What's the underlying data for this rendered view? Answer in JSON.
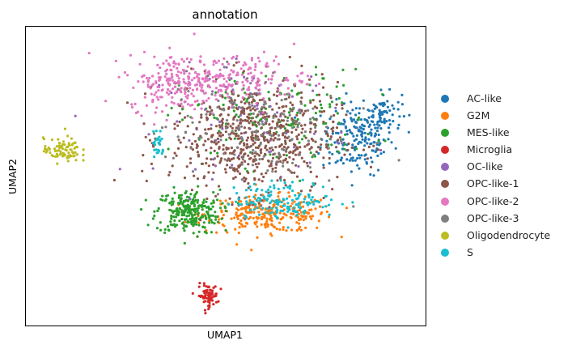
{
  "chart_data": {
    "type": "scatter",
    "title": "annotation",
    "xlabel": "UMAP1",
    "ylabel": "UMAP2",
    "grid": false,
    "legend_position": "right-outside",
    "xlim": [
      -8,
      12
    ],
    "ylim": [
      -7,
      8
    ],
    "series": [
      {
        "name": "AC-like",
        "color": "#1f77b4",
        "clusters": [
          {
            "cx": 8.6,
            "cy": 2.4,
            "sx": 0.9,
            "sy": 0.9,
            "n": 180
          },
          {
            "cx": 9.8,
            "cy": 3.7,
            "sx": 0.5,
            "sy": 0.5,
            "n": 70
          }
        ]
      },
      {
        "name": "G2M",
        "color": "#ff7f0e",
        "clusters": [
          {
            "cx": 4.2,
            "cy": -1.4,
            "sx": 1.6,
            "sy": 0.45,
            "n": 280
          }
        ]
      },
      {
        "name": "MES-like",
        "color": "#2ca02c",
        "clusters": [
          {
            "cx": 0.1,
            "cy": -1.3,
            "sx": 0.8,
            "sy": 0.55,
            "n": 260
          },
          {
            "cx": 4.5,
            "cy": 3.4,
            "sx": 2.4,
            "sy": 1.2,
            "n": 170
          }
        ]
      },
      {
        "name": "Microglia",
        "color": "#d62728",
        "clusters": [
          {
            "cx": 1.1,
            "cy": -5.5,
            "sx": 0.25,
            "sy": 0.28,
            "n": 75
          }
        ]
      },
      {
        "name": "OC-like",
        "color": "#9467bd",
        "clusters": [
          {
            "cx": 3.5,
            "cy": 3.3,
            "sx": 2.4,
            "sy": 1.4,
            "n": 90
          }
        ]
      },
      {
        "name": "OPC-like-1",
        "color": "#8c564b",
        "clusters": [
          {
            "cx": 3.4,
            "cy": 2.4,
            "sx": 2.1,
            "sy": 1.4,
            "n": 620
          }
        ]
      },
      {
        "name": "OPC-like-2",
        "color": "#e377c2",
        "clusters": [
          {
            "cx": -0.1,
            "cy": 5.2,
            "sx": 1.4,
            "sy": 0.7,
            "n": 260
          },
          {
            "cx": 3.2,
            "cy": 5.5,
            "sx": 1.4,
            "sy": 0.6,
            "n": 110
          }
        ]
      },
      {
        "name": "OPC-like-3",
        "color": "#7f7f7f",
        "clusters": [
          {
            "cx": 3.4,
            "cy": 2.8,
            "sx": 2.2,
            "sy": 1.5,
            "n": 160
          }
        ]
      },
      {
        "name": "Oligodendrocyte",
        "color": "#bcbd22",
        "clusters": [
          {
            "cx": -6.2,
            "cy": 1.8,
            "sx": 0.45,
            "sy": 0.3,
            "n": 85
          }
        ]
      },
      {
        "name": "S",
        "color": "#17becf",
        "clusters": [
          {
            "cx": 5.0,
            "cy": -0.7,
            "sx": 1.3,
            "sy": 0.45,
            "n": 150
          },
          {
            "cx": -1.4,
            "cy": 2.1,
            "sx": 0.15,
            "sy": 0.5,
            "n": 25
          }
        ]
      }
    ]
  }
}
